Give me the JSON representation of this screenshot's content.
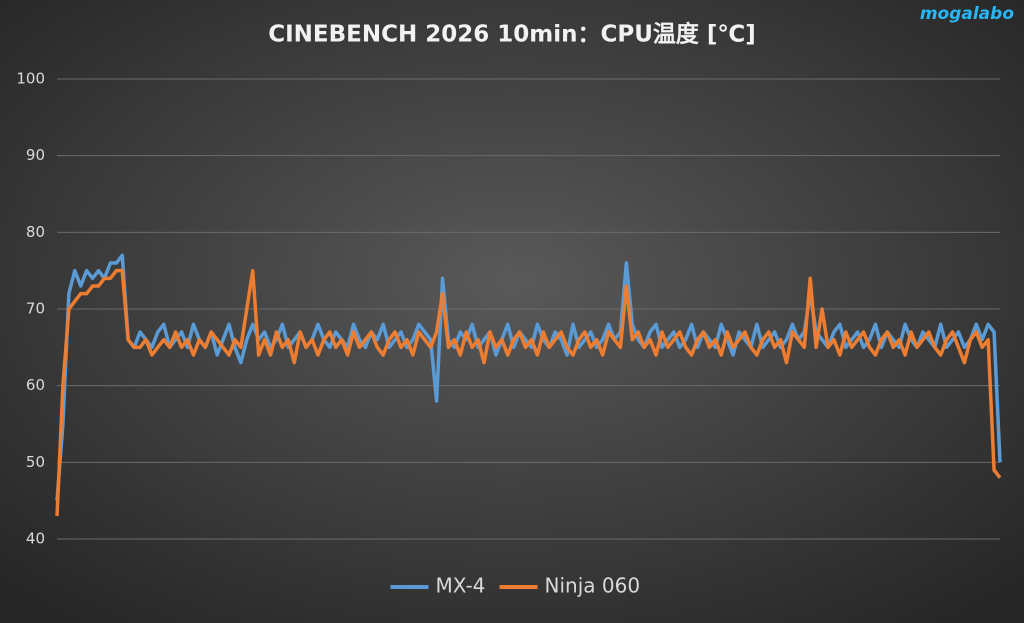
{
  "chart_data": {
    "type": "line",
    "title": "CINEBENCH 2026 10min：CPU温度 [℃]",
    "logo": "mogalabo",
    "ylim": [
      40,
      100
    ],
    "yticks": [
      40,
      50,
      60,
      70,
      80,
      90,
      100
    ],
    "grid": true,
    "legend": "bottom",
    "series": [
      {
        "name": "MX-4",
        "color": "#5b9bd5",
        "values": [
          45,
          55,
          72,
          75,
          73,
          75,
          74,
          75,
          74,
          76,
          76,
          77,
          66,
          65,
          67,
          66,
          65,
          67,
          68,
          65,
          66,
          67,
          65,
          68,
          66,
          65,
          67,
          64,
          66,
          68,
          65,
          63,
          66,
          68,
          66,
          67,
          65,
          66,
          68,
          65,
          66,
          67,
          65,
          66,
          68,
          66,
          65,
          67,
          66,
          65,
          68,
          66,
          65,
          67,
          66,
          68,
          65,
          66,
          67,
          65,
          66,
          68,
          67,
          66,
          58,
          74,
          66,
          65,
          67,
          66,
          68,
          65,
          66,
          67,
          64,
          66,
          68,
          65,
          67,
          66,
          65,
          68,
          66,
          65,
          67,
          66,
          64,
          68,
          65,
          66,
          67,
          65,
          66,
          68,
          66,
          67,
          76,
          68,
          66,
          65,
          67,
          68,
          65,
          66,
          67,
          65,
          66,
          68,
          65,
          67,
          66,
          65,
          68,
          66,
          64,
          67,
          66,
          65,
          68,
          65,
          66,
          67,
          65,
          66,
          68,
          66,
          67,
          72,
          67,
          66,
          65,
          67,
          68,
          65,
          66,
          67,
          65,
          66,
          68,
          65,
          67,
          66,
          65,
          68,
          66,
          65,
          67,
          66,
          65,
          68,
          65,
          66,
          67,
          65,
          66,
          68,
          66,
          68,
          67,
          50
        ]
      },
      {
        "name": "Ninja 060",
        "color": "#ed7d31",
        "values": [
          43,
          60,
          70,
          71,
          72,
          72,
          73,
          73,
          74,
          74,
          75,
          75,
          66,
          65,
          65,
          66,
          64,
          65,
          66,
          65,
          67,
          65,
          66,
          64,
          66,
          65,
          67,
          66,
          65,
          64,
          66,
          65,
          70,
          75,
          64,
          66,
          64,
          67,
          65,
          66,
          63,
          67,
          65,
          66,
          64,
          66,
          67,
          65,
          66,
          64,
          67,
          65,
          66,
          67,
          65,
          64,
          66,
          67,
          65,
          66,
          64,
          67,
          66,
          65,
          67,
          72,
          65,
          66,
          64,
          67,
          65,
          66,
          63,
          67,
          65,
          66,
          64,
          66,
          67,
          65,
          66,
          64,
          67,
          65,
          66,
          67,
          65,
          64,
          66,
          67,
          65,
          66,
          64,
          67,
          66,
          65,
          73,
          66,
          67,
          65,
          66,
          64,
          67,
          65,
          66,
          67,
          65,
          64,
          66,
          67,
          65,
          66,
          64,
          67,
          65,
          66,
          67,
          65,
          64,
          66,
          67,
          65,
          66,
          63,
          67,
          66,
          65,
          74,
          65,
          70,
          65,
          66,
          64,
          67,
          65,
          66,
          67,
          65,
          64,
          66,
          67,
          65,
          66,
          64,
          67,
          65,
          66,
          67,
          65,
          64,
          66,
          67,
          65,
          63,
          66,
          67,
          65,
          66,
          49,
          48
        ]
      }
    ]
  }
}
